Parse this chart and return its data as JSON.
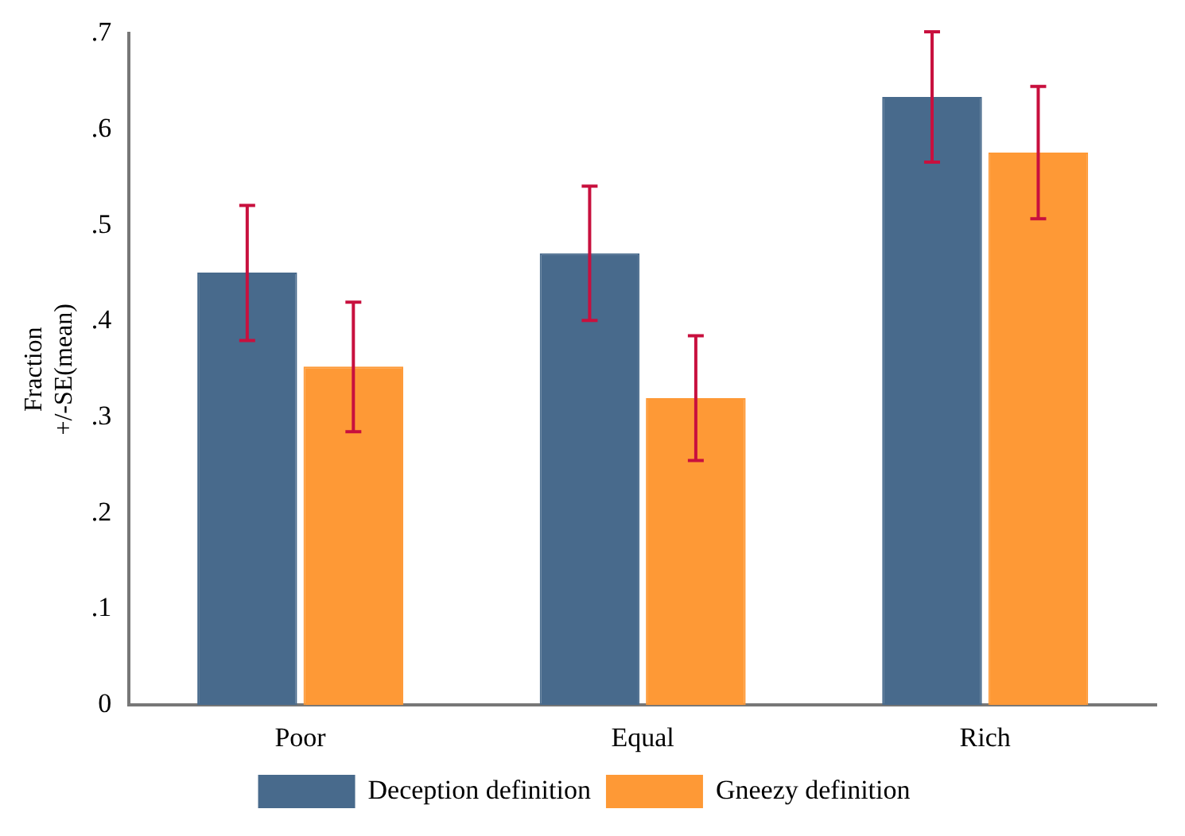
{
  "chart_data": {
    "type": "bar",
    "ylabel": "Fraction\n+/-SE(mean)",
    "categories": [
      "Poor",
      "Equal",
      "Rich"
    ],
    "series": [
      {
        "name": "Deception definition",
        "color": "#486a8c",
        "values": [
          0.451,
          0.471,
          0.634
        ],
        "errors": [
          [
            0.38,
            0.521
          ],
          [
            0.401,
            0.541
          ],
          [
            0.566,
            0.702
          ]
        ]
      },
      {
        "name": "Gneezy definition",
        "color": "#fe9936",
        "values": [
          0.353,
          0.32,
          0.576
        ],
        "errors": [
          [
            0.285,
            0.42
          ],
          [
            0.255,
            0.385
          ],
          [
            0.507,
            0.645
          ]
        ]
      }
    ],
    "ylim": [
      0,
      0.7
    ],
    "yticks": [
      0,
      {
        "value": 0.1,
        "label": ".1"
      },
      {
        "value": 0.2,
        "label": ".2"
      },
      {
        "value": 0.3,
        "label": ".3"
      },
      {
        "value": 0.4,
        "label": ".4"
      },
      {
        "value": 0.5,
        "label": ".5"
      },
      {
        "value": 0.6,
        "label": ".6"
      },
      {
        "value": 0.7,
        "label": ".7"
      }
    ],
    "grid": false,
    "legend": "bottom"
  }
}
